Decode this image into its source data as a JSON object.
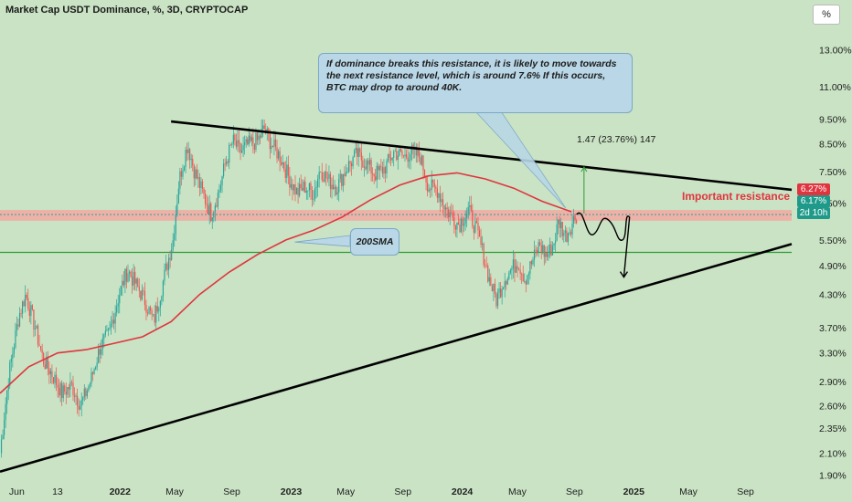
{
  "header": {
    "title": "Market Cap USDT Dominance, %, 3D, CRYPTOCAP",
    "unit_button": "%"
  },
  "annotations": {
    "note": "If dominance breaks this resistance, it is likely to move towards the next resistance level, which is around 7.6% If this occurs, BTC may drop to around 40K.",
    "sma_label": "200SMA",
    "resistance_label": "Important resistance",
    "measure_label": "1.47 (23.76%) 147"
  },
  "price_badges": {
    "top": "6.27%",
    "current": "6.17%",
    "countdown": "2d 10h"
  },
  "colors": {
    "background": "#c9e3c4",
    "candle_up": "#26a69a",
    "candle_down": "#ef5350",
    "sma": "#e0353f",
    "trendline": "#000000",
    "support_line": "#2e9b35",
    "resistance_zone": "#f2a9a3",
    "callout": "#b9d7e6"
  },
  "chart_data": {
    "type": "candlestick",
    "title": "Market Cap USDT Dominance, %, 3D, CRYPTOCAP",
    "y_scale": "log",
    "ylim": [
      1.85,
      14.5
    ],
    "y_ticks": [
      "13.00%",
      "11.00%",
      "9.50%",
      "8.50%",
      "7.50%",
      "6.50%",
      "5.50%",
      "4.90%",
      "4.30%",
      "3.70%",
      "3.30%",
      "2.90%",
      "2.60%",
      "2.35%",
      "2.10%",
      "1.90%"
    ],
    "y_tick_values": [
      13.0,
      11.0,
      9.5,
      8.5,
      7.5,
      6.5,
      5.5,
      4.9,
      4.3,
      3.7,
      3.3,
      2.9,
      2.6,
      2.35,
      2.1,
      1.9
    ],
    "x_ticks": [
      "Jun",
      "13",
      "2022",
      "May",
      "Sep",
      "2023",
      "May",
      "Sep",
      "2024",
      "May",
      "Sep",
      "2025",
      "May",
      "Sep"
    ],
    "x_tick_dates": [
      "2021-06-01",
      "2021-09-01",
      "2022-01-01",
      "2022-05-01",
      "2022-09-01",
      "2023-01-01",
      "2023-05-01",
      "2023-09-01",
      "2024-01-01",
      "2024-05-01",
      "2024-09-01",
      "2025-01-01",
      "2025-05-01",
      "2025-09-01"
    ],
    "close_path": [
      [
        "2021-05-01",
        2.1
      ],
      [
        "2021-05-20",
        3.0
      ],
      [
        "2021-06-10",
        3.9
      ],
      [
        "2021-06-25",
        4.3
      ],
      [
        "2021-07-15",
        3.7
      ],
      [
        "2021-08-01",
        3.2
      ],
      [
        "2021-08-20",
        3.0
      ],
      [
        "2021-09-10",
        2.75
      ],
      [
        "2021-10-01",
        2.85
      ],
      [
        "2021-10-20",
        2.6
      ],
      [
        "2021-11-10",
        2.9
      ],
      [
        "2021-12-01",
        3.4
      ],
      [
        "2021-12-20",
        3.6
      ],
      [
        "2022-01-10",
        4.3
      ],
      [
        "2022-01-28",
        4.8
      ],
      [
        "2022-02-15",
        4.5
      ],
      [
        "2022-03-05",
        4.2
      ],
      [
        "2022-03-25",
        3.8
      ],
      [
        "2022-04-10",
        4.4
      ],
      [
        "2022-05-05",
        5.5
      ],
      [
        "2022-05-18",
        7.2
      ],
      [
        "2022-06-05",
        8.5
      ],
      [
        "2022-06-20",
        7.5
      ],
      [
        "2022-07-10",
        6.7
      ],
      [
        "2022-07-25",
        6.2
      ],
      [
        "2022-08-10",
        6.8
      ],
      [
        "2022-08-25",
        7.8
      ],
      [
        "2022-09-10",
        8.6
      ],
      [
        "2022-09-25",
        8.2
      ],
      [
        "2022-10-15",
        8.5
      ],
      [
        "2022-11-01",
        8.6
      ],
      [
        "2022-11-15",
        9.1
      ],
      [
        "2022-12-01",
        8.5
      ],
      [
        "2022-12-20",
        8.0
      ],
      [
        "2023-01-10",
        7.2
      ],
      [
        "2023-01-25",
        6.8
      ],
      [
        "2023-02-10",
        7.0
      ],
      [
        "2023-03-01",
        6.8
      ],
      [
        "2023-03-15",
        7.6
      ],
      [
        "2023-04-01",
        7.2
      ],
      [
        "2023-04-20",
        7.0
      ],
      [
        "2023-05-10",
        7.6
      ],
      [
        "2023-06-01",
        8.1
      ],
      [
        "2023-06-20",
        7.8
      ],
      [
        "2023-07-10",
        7.4
      ],
      [
        "2023-07-30",
        7.6
      ],
      [
        "2023-08-20",
        8.2
      ],
      [
        "2023-09-10",
        8.0
      ],
      [
        "2023-09-25",
        8.2
      ],
      [
        "2023-10-15",
        8.0
      ],
      [
        "2023-11-01",
        7.0
      ],
      [
        "2023-11-20",
        6.9
      ],
      [
        "2023-12-10",
        6.3
      ],
      [
        "2024-01-05",
        5.9
      ],
      [
        "2024-01-25",
        6.3
      ],
      [
        "2024-02-10",
        5.8
      ],
      [
        "2024-02-25",
        5.2
      ],
      [
        "2024-03-10",
        4.6
      ],
      [
        "2024-03-25",
        4.2
      ],
      [
        "2024-04-10",
        4.6
      ],
      [
        "2024-04-25",
        4.8
      ],
      [
        "2024-05-10",
        5.0
      ],
      [
        "2024-05-25",
        4.6
      ],
      [
        "2024-06-10",
        5.0
      ],
      [
        "2024-06-25",
        5.4
      ],
      [
        "2024-07-10",
        5.1
      ],
      [
        "2024-07-25",
        5.4
      ],
      [
        "2024-08-05",
        6.0
      ],
      [
        "2024-08-20",
        5.6
      ],
      [
        "2024-09-01",
        5.9
      ],
      [
        "2024-09-12",
        6.17
      ]
    ],
    "series": [
      {
        "name": "200SMA",
        "type": "line",
        "points": [
          [
            "2021-05-01",
            2.75
          ],
          [
            "2021-07-01",
            3.1
          ],
          [
            "2021-09-01",
            3.3
          ],
          [
            "2021-11-01",
            3.35
          ],
          [
            "2022-01-01",
            3.45
          ],
          [
            "2022-03-01",
            3.55
          ],
          [
            "2022-05-01",
            3.8
          ],
          [
            "2022-07-01",
            4.3
          ],
          [
            "2022-09-01",
            4.75
          ],
          [
            "2022-11-01",
            5.15
          ],
          [
            "2023-01-01",
            5.5
          ],
          [
            "2023-03-01",
            5.75
          ],
          [
            "2023-05-01",
            6.1
          ],
          [
            "2023-07-01",
            6.6
          ],
          [
            "2023-09-01",
            7.05
          ],
          [
            "2023-11-01",
            7.35
          ],
          [
            "2024-01-01",
            7.45
          ],
          [
            "2024-03-01",
            7.25
          ],
          [
            "2024-05-01",
            6.95
          ],
          [
            "2024-07-01",
            6.55
          ],
          [
            "2024-09-01",
            6.25
          ]
        ]
      }
    ],
    "trendlines": [
      {
        "from": [
          "2022-05-01",
          9.4
        ],
        "to": [
          "2025-12-15",
          6.9
        ]
      },
      {
        "from": [
          "2021-05-01",
          1.93
        ],
        "to": [
          "2025-12-15",
          5.4
        ]
      }
    ],
    "horizontal_line": 5.2,
    "resistance_zone": [
      6.0,
      6.3
    ],
    "projection_path": [
      [
        "2024-09-12",
        6.17
      ],
      [
        "2024-11-15",
        5.1
      ],
      [
        "2024-12-20",
        4.6
      ]
    ]
  }
}
